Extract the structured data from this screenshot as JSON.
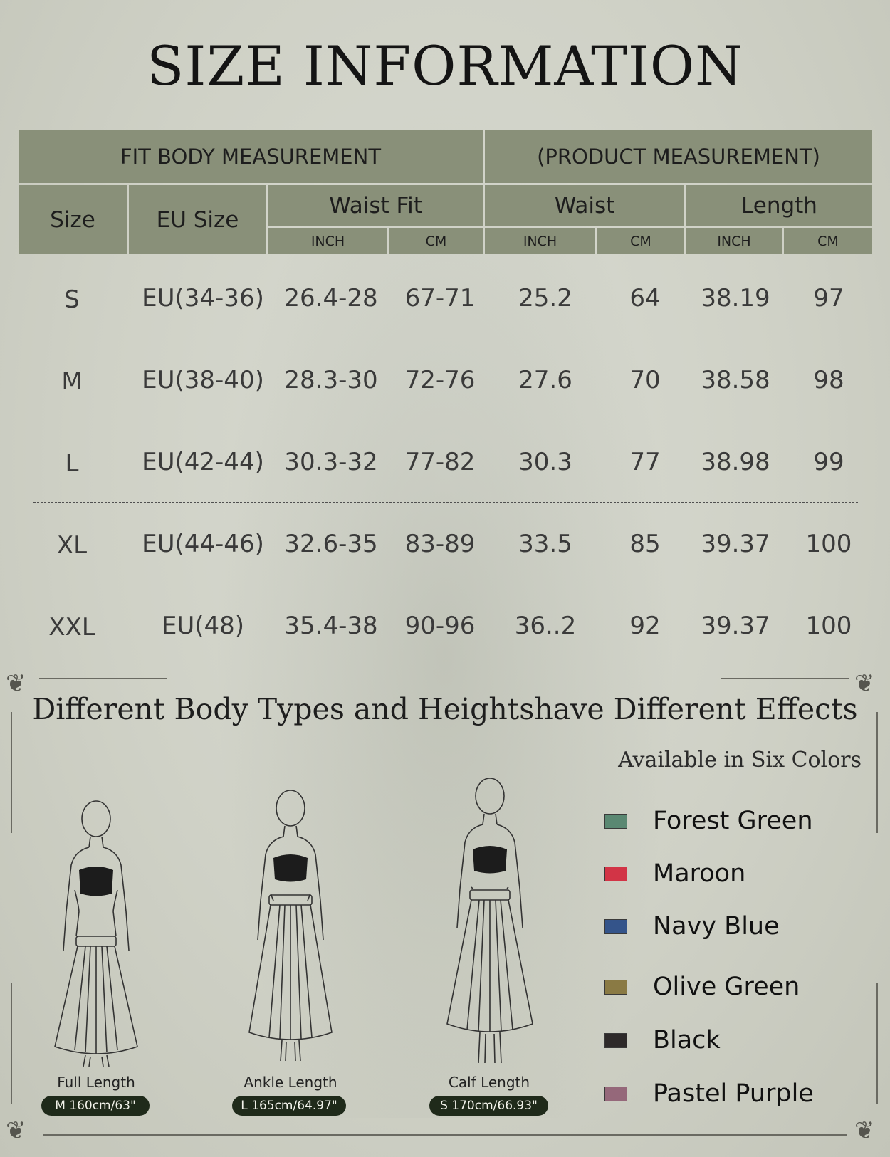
{
  "title": "SIZE INFORMATION",
  "table": {
    "group_fit": "FIT BODY MEASUREMENT",
    "group_product": "(PRODUCT MEASUREMENT)",
    "col_size": "Size",
    "col_eu": "EU Size",
    "col_waist_fit": "Waist Fit",
    "col_waist": "Waist",
    "col_length": "Length",
    "unit_inch": "INCH",
    "unit_cm": "CM",
    "rows": [
      {
        "size": "S",
        "eu": "EU(34-36)",
        "wf_inch": "26.4-28",
        "wf_cm": "67-71",
        "w_inch": "25.2",
        "w_cm": "64",
        "l_inch": "38.19",
        "l_cm": "97"
      },
      {
        "size": "M",
        "eu": "EU(38-40)",
        "wf_inch": "28.3-30",
        "wf_cm": "72-76",
        "w_inch": "27.6",
        "w_cm": "70",
        "l_inch": "38.58",
        "l_cm": "98"
      },
      {
        "size": "L",
        "eu": "EU(42-44)",
        "wf_inch": "30.3-32",
        "wf_cm": "77-82",
        "w_inch": "30.3",
        "w_cm": "77",
        "l_inch": "38.98",
        "l_cm": "99"
      },
      {
        "size": "XL",
        "eu": "EU(44-46)",
        "wf_inch": "32.6-35",
        "wf_cm": "83-89",
        "w_inch": "33.5",
        "w_cm": "85",
        "l_inch": "39.37",
        "l_cm": "100"
      },
      {
        "size": "XXL",
        "eu": "EU(48)",
        "wf_inch": "35.4-38",
        "wf_cm": "90-96",
        "w_inch": "36..2",
        "w_cm": "92",
        "l_inch": "39.37",
        "l_cm": "100"
      }
    ]
  },
  "body_types": {
    "heading": "Different Body Types and Heightshave Different Effects",
    "figures": [
      {
        "label": "Full Length",
        "badge": "M 160cm/63\""
      },
      {
        "label": "Ankle Length",
        "badge": "L 165cm/64.97\""
      },
      {
        "label": "Calf Length",
        "badge": "S 170cm/66.93\""
      }
    ]
  },
  "colors": {
    "heading": "Available in Six Colors",
    "items": [
      {
        "name": "Forest Green",
        "hex": "#5a8872"
      },
      {
        "name": "Maroon",
        "hex": "#d23446"
      },
      {
        "name": "Navy Blue",
        "hex": "#34548a"
      },
      {
        "name": "Olive Green",
        "hex": "#8a7a44"
      },
      {
        "name": "Black",
        "hex": "#2e2a2a"
      },
      {
        "name": "Pastel Purple",
        "hex": "#95687a"
      }
    ]
  }
}
